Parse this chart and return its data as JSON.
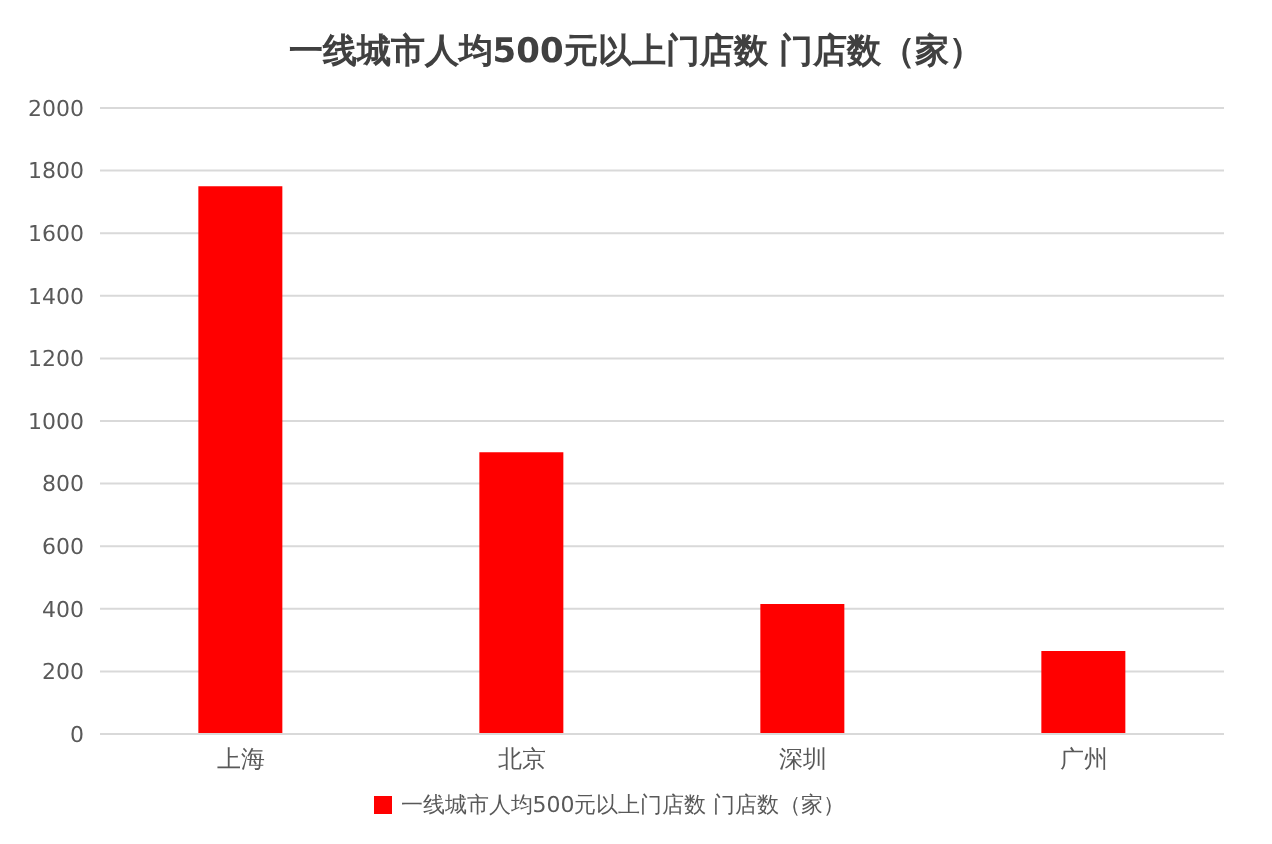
{
  "chart_data": {
    "type": "bar",
    "title": "一线城市人均500元以上门店数 门店数（家）",
    "categories": [
      "上海",
      "北京",
      "深圳",
      "广州"
    ],
    "series": [
      {
        "name": "一线城市人均500元以上门店数 门店数（家）",
        "color": "#ff0000",
        "values": [
          1750,
          900,
          415,
          265
        ]
      }
    ],
    "ylim": [
      0,
      2000
    ],
    "yticks": [
      0,
      200,
      400,
      600,
      800,
      1000,
      1200,
      1400,
      1600,
      1800,
      2000
    ],
    "grid": "y",
    "legend": "bottom"
  }
}
